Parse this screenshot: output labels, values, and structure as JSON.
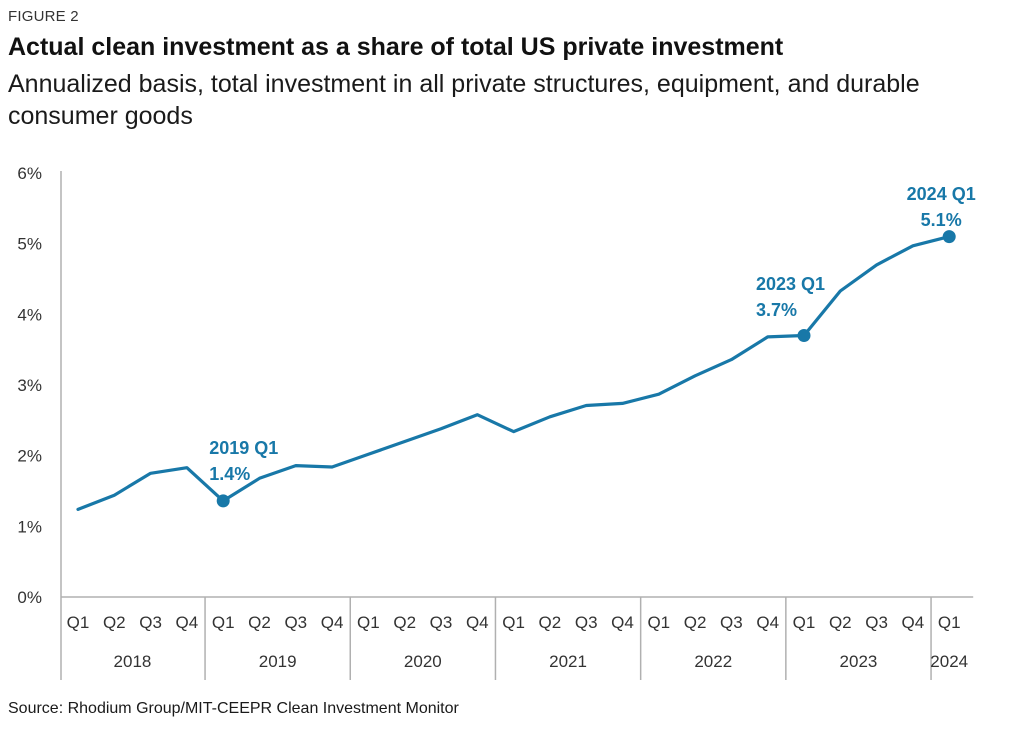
{
  "figure_label": "FIGURE 2",
  "title": "Actual clean investment as a share of total US private investment",
  "subtitle": "Annualized basis, total investment in all private structures, equipment, and durable consumer goods",
  "source": "Source: Rhodium Group/MIT-CEEPR Clean Investment Monitor",
  "colors": {
    "line": "#1878a8",
    "axis": "#b0b0b0",
    "text": "#333333"
  },
  "chart_data": {
    "type": "line",
    "y_ticks": [
      "0%",
      "1%",
      "2%",
      "3%",
      "4%",
      "5%",
      "6%"
    ],
    "ylim": [
      0,
      6
    ],
    "quarters": [
      "Q1",
      "Q2",
      "Q3",
      "Q4",
      "Q1",
      "Q2",
      "Q3",
      "Q4",
      "Q1",
      "Q2",
      "Q3",
      "Q4",
      "Q1",
      "Q2",
      "Q3",
      "Q4",
      "Q1",
      "Q2",
      "Q3",
      "Q4",
      "Q1",
      "Q2",
      "Q3",
      "Q4",
      "Q1"
    ],
    "years": [
      {
        "label": "2018",
        "quarters": 4
      },
      {
        "label": "2019",
        "quarters": 4
      },
      {
        "label": "2020",
        "quarters": 4
      },
      {
        "label": "2021",
        "quarters": 4
      },
      {
        "label": "2022",
        "quarters": 4
      },
      {
        "label": "2023",
        "quarters": 4
      },
      {
        "label": "2024",
        "quarters": 1
      }
    ],
    "values": [
      1.24,
      1.44,
      1.75,
      1.83,
      1.36,
      1.68,
      1.86,
      1.84,
      2.02,
      2.2,
      2.38,
      2.58,
      2.34,
      2.55,
      2.71,
      2.74,
      2.87,
      3.13,
      3.36,
      3.68,
      3.7,
      4.33,
      4.7,
      4.97,
      5.1
    ],
    "annotations": [
      {
        "index": 4,
        "line1": "2019 Q1",
        "line2": "1.4%"
      },
      {
        "index": 20,
        "line1": "2023 Q1",
        "line2": "3.7%"
      },
      {
        "index": 24,
        "line1": "2024 Q1",
        "line2": "5.1%"
      }
    ]
  }
}
